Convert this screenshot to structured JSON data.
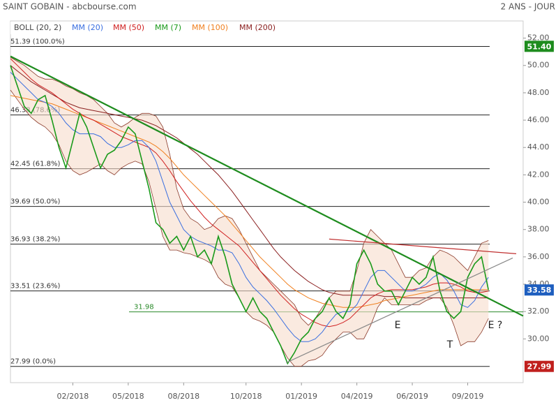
{
  "chart_data": {
    "type": "line",
    "title": "SAINT GOBAIN - abcbourse.com",
    "subtitle": "2 ANS - JOUR",
    "categories": [
      null,
      null,
      null,
      null,
      null,
      null,
      null,
      null,
      null,
      "02/2018",
      null,
      null,
      null,
      null,
      null,
      null,
      null,
      "05/2018",
      null,
      null,
      null,
      null,
      null,
      null,
      null,
      "08/2018",
      null,
      null,
      null,
      null,
      null,
      null,
      null,
      null,
      "10/2018",
      null,
      null,
      null,
      null,
      null,
      null,
      null,
      "01/2019",
      null,
      null,
      null,
      null,
      null,
      null,
      null,
      "04/2019",
      null,
      null,
      null,
      null,
      null,
      null,
      null,
      "06/2019",
      null,
      null,
      null,
      null,
      null,
      null,
      null,
      "09/2019",
      null,
      null,
      null
    ],
    "ylim": [
      26.8,
      53.0
    ],
    "yticks": [
      {
        "value": 30,
        "label": "30.00"
      },
      {
        "value": 32,
        "label": "32.00"
      },
      {
        "value": 34,
        "label": "34.00"
      },
      {
        "value": 36,
        "label": "36.00"
      },
      {
        "value": 38,
        "label": "38.00"
      },
      {
        "value": 40,
        "label": "40.00"
      },
      {
        "value": 42,
        "label": "42.00"
      },
      {
        "value": 44,
        "label": "44.00"
      },
      {
        "value": 46,
        "label": "46.00"
      },
      {
        "value": 48,
        "label": "48.00"
      },
      {
        "value": 50,
        "label": "50.00"
      },
      {
        "value": 52,
        "label": "52.00"
      }
    ],
    "series": [
      {
        "name": "BOLL (20, 2)",
        "color": "#8b3a2a",
        "upper": [
          50.6,
          50.3,
          50,
          49.6,
          49.2,
          49,
          49,
          48.8,
          48.5,
          48.3,
          48,
          47.8,
          47.5,
          47,
          46.5,
          45.8,
          45.5,
          45.8,
          46.2,
          46.5,
          46.5,
          46.3,
          45.5,
          43.5,
          41,
          39.5,
          38.8,
          38.5,
          38,
          38.2,
          38.8,
          39,
          38.8,
          38,
          37,
          36,
          35,
          34.5,
          34,
          33.5,
          33,
          32.5,
          31.5,
          31,
          31.5,
          32.3,
          33,
          33.5,
          33.5,
          33.5,
          35,
          37,
          38,
          37.5,
          37,
          36.5,
          35.5,
          34.5,
          34.5,
          35,
          35.2,
          36,
          36.5,
          36.3,
          36,
          35.5,
          35,
          36,
          37,
          37.2
        ],
        "lower": [
          48.2,
          47.5,
          46.8,
          46.2,
          45.8,
          45.5,
          45,
          44.2,
          43,
          42.3,
          42,
          42.2,
          42.5,
          42.8,
          42.3,
          42,
          42.5,
          42.8,
          43,
          42.8,
          41.5,
          39.5,
          37.5,
          36.5,
          36.5,
          36.3,
          36.2,
          36,
          35.8,
          35.5,
          34.5,
          34,
          33.8,
          33,
          32,
          31.5,
          31.3,
          31,
          30.5,
          29.5,
          28.6,
          28,
          28,
          28.4,
          28.5,
          28.8,
          29.5,
          30,
          30.5,
          30.5,
          30,
          30,
          31,
          32.3,
          33,
          32.5,
          32.5,
          32.5,
          32.5,
          32.5,
          32.8,
          33,
          33,
          32.3,
          31,
          29.5,
          29.8,
          29.8,
          30.5,
          31.5
        ]
      },
      {
        "name": "MM (20)",
        "color": "#3a6fe0",
        "values": [
          49.5,
          49,
          48.5,
          48,
          47.5,
          47.3,
          47,
          46.5,
          45.8,
          45.3,
          45,
          45,
          45,
          44.8,
          44.3,
          44,
          44,
          44.2,
          44.5,
          44.5,
          44,
          43,
          41.5,
          40,
          39,
          38,
          37.5,
          37.2,
          37,
          36.8,
          36.5,
          36.5,
          36.3,
          35.5,
          34.5,
          33.8,
          33.3,
          32.8,
          32.2,
          31.5,
          30.8,
          30.2,
          29.8,
          29.8,
          30,
          30.5,
          31.2,
          31.8,
          32,
          32,
          32.5,
          33.5,
          34.5,
          35,
          35,
          34.5,
          34,
          33.5,
          33.5,
          33.7,
          34,
          34.5,
          34.8,
          34.3,
          33.5,
          32.5,
          32.3,
          32.8,
          33.8,
          34.5
        ]
      },
      {
        "name": "MM (50)",
        "color": "#d02020",
        "values": [
          50.5,
          50,
          49.5,
          49,
          48.6,
          48.3,
          48,
          47.6,
          47.2,
          46.8,
          46.5,
          46.2,
          46,
          45.7,
          45.4,
          45.1,
          44.8,
          44.6,
          44.4,
          44.2,
          44,
          43.6,
          43,
          42.3,
          41.5,
          40.8,
          40.1,
          39.5,
          38.9,
          38.4,
          38,
          37.6,
          37.2,
          36.8,
          36.2,
          35.6,
          35,
          34.4,
          33.8,
          33.2,
          32.7,
          32.2,
          31.8,
          31.5,
          31.2,
          31,
          30.9,
          31,
          31.2,
          31.5,
          32,
          32.5,
          33,
          33.3,
          33.5,
          33.6,
          33.6,
          33.6,
          33.6,
          33.7,
          33.8,
          34,
          34.1,
          34.1,
          34,
          33.8,
          33.5,
          33.4,
          33.4,
          33.5
        ]
      },
      {
        "name": "MM (7)",
        "color": "#1a9a1a",
        "values": [
          50,
          48.5,
          47,
          46.5,
          47.5,
          47.8,
          46,
          44,
          42.5,
          44.5,
          46.5,
          45.5,
          44,
          42.5,
          43.5,
          43.8,
          44.5,
          45.5,
          45,
          43,
          41,
          38.5,
          38,
          37,
          37.5,
          36.5,
          37.5,
          36,
          36.5,
          35.5,
          37.5,
          36,
          34,
          33,
          32,
          33,
          32,
          31.5,
          30.5,
          29.5,
          28.2,
          29,
          30,
          30.5,
          31.5,
          32,
          33,
          32,
          31.5,
          32.5,
          35.5,
          36.5,
          35.5,
          34,
          33.5,
          33.5,
          32.5,
          33.5,
          34.5,
          34,
          34.5,
          36,
          33.5,
          32,
          31.5,
          32,
          34.5,
          35.5,
          36,
          33.58
        ]
      },
      {
        "name": "MM (100)",
        "color": "#f08020",
        "values": [
          47.8,
          47.7,
          47.6,
          47.5,
          47.4,
          47.3,
          47.2,
          47,
          46.8,
          46.6,
          46.4,
          46.2,
          46,
          45.8,
          45.6,
          45.4,
          45.2,
          45,
          44.8,
          44.6,
          44.4,
          44.1,
          43.7,
          43.2,
          42.6,
          42,
          41.5,
          41,
          40.5,
          40,
          39.5,
          39,
          38.4,
          37.8,
          37.2,
          36.6,
          36,
          35.5,
          35,
          34.5,
          34,
          33.6,
          33.3,
          33,
          32.8,
          32.6,
          32.5,
          32.4,
          32.3,
          32.3,
          32.3,
          32.4,
          32.5,
          32.6,
          32.8,
          32.9,
          33,
          33.1,
          33.2,
          33.3,
          33.4,
          33.5,
          33.6,
          33.6,
          33.6,
          33.6,
          33.6,
          33.6,
          33.6,
          33.6
        ]
      },
      {
        "name": "MM (200)",
        "color": "#8b2020",
        "values": [
          50,
          49.6,
          49.2,
          48.8,
          48.5,
          48.2,
          47.9,
          47.6,
          47.3,
          47.1,
          46.9,
          46.8,
          46.7,
          46.6,
          46.5,
          46.4,
          46.3,
          46.2,
          46.1,
          46,
          45.8,
          45.6,
          45.3,
          45,
          44.7,
          44.3,
          43.9,
          43.5,
          43,
          42.5,
          42,
          41.4,
          40.8,
          40.1,
          39.4,
          38.7,
          38,
          37.3,
          36.6,
          36,
          35.5,
          35,
          34.6,
          34.2,
          33.9,
          33.6,
          33.4,
          33.3,
          33.2,
          33.2,
          33.2,
          33.2,
          33.2,
          33.2,
          33.1,
          33.1,
          33.1,
          33,
          33,
          33,
          33,
          33,
          33,
          33,
          33,
          33,
          33,
          33,
          33,
          33
        ]
      }
    ],
    "fib_levels": [
      {
        "value": 51.39,
        "label": "51.39 (100.0%)"
      },
      {
        "value": 46.38,
        "label": "46.38 (78.6%)"
      },
      {
        "value": 42.45,
        "label": "42.45 (61.8%)"
      },
      {
        "value": 39.69,
        "label": "39.69 (50.0%)"
      },
      {
        "value": 36.93,
        "label": "36.93 (38.2%)"
      },
      {
        "value": 33.51,
        "label": "33.51 (23.6%)"
      },
      {
        "value": 27.99,
        "label": "27.99 (0.0%)"
      }
    ],
    "support_level": {
      "value": 31.98,
      "label": "31.98",
      "color": "#2a8a2a"
    },
    "trendlines": [
      {
        "color": "#1e8c1e",
        "x": [
          0,
          74
        ],
        "y": [
          50.67,
          31.68
        ]
      },
      {
        "color": "#c03030",
        "x": [
          46,
          73
        ],
        "y": [
          37.3,
          36.23
        ]
      },
      {
        "color": "#888888",
        "x": [
          39.8,
          72.5
        ],
        "y": [
          28.26,
          35.92
        ]
      }
    ],
    "price_badges": [
      {
        "value": 51.4,
        "label": "51.40",
        "color": "#1e8c1e"
      },
      {
        "value": 33.58,
        "label": "33.58",
        "color": "#1f5fbf"
      },
      {
        "value": 27.99,
        "label": "27.99",
        "color": "#c0201e"
      }
    ],
    "annotations": [
      "E",
      "T",
      "E ?"
    ]
  }
}
